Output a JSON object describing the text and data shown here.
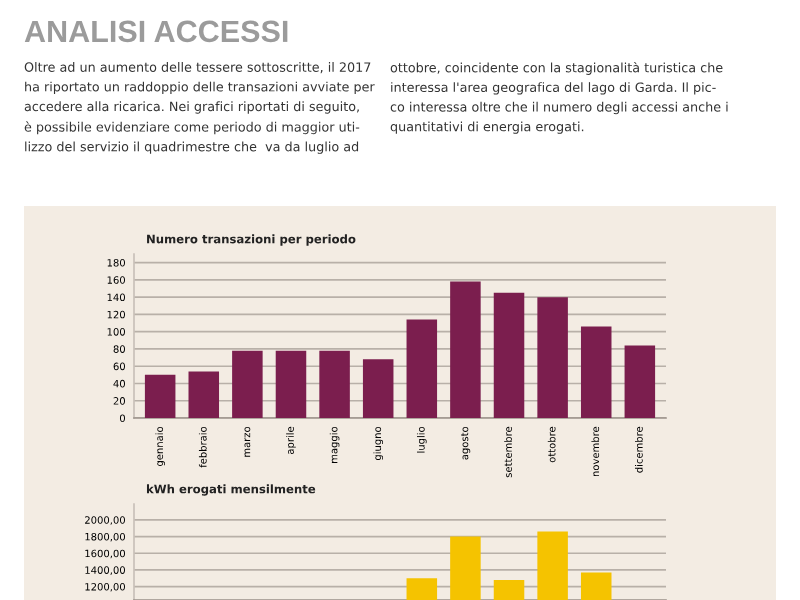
{
  "chart_data": [
    {
      "type": "bar",
      "title": "Numero transazioni per periodo",
      "annotations": [
        "ANALISI ACCESSI",
        "Oltre ad un aumento delle tessere sottoscritte, il 2017\nha riportato un raddoppio delle transazioni avviate per\naccedere alla ricarica. Nei grafici riportati di seguito,\nè possibile evidenziare come periodo di maggior uti-\nlizzo del servizio il quadrimestre che  va da luglio ad",
        "ottobre, coincidente con la stagionalità turistica che\ninteressa l'area geografica del lago di Garda. Il pic-\nco interessa oltre che il numero degli accessi anche i\nquantitativi di energia erogati."
      ],
      "categories": [
        "gennaio",
        "febbraio",
        "marzo",
        "aprile",
        "maggio",
        "giugno",
        "luglio",
        "agosto",
        "settembre",
        "ottobre",
        "novembre",
        "dicembre"
      ],
      "values": [
        50,
        54,
        78,
        78,
        78,
        68,
        114,
        158,
        145,
        140,
        106,
        84
      ],
      "color": "#7b1e4e",
      "ylim": [
        0,
        190
      ],
      "yticks": [
        0,
        20,
        40,
        60,
        80,
        100,
        120,
        140,
        160,
        180
      ],
      "grid": "y"
    },
    {
      "type": "bar",
      "title": "kWh erogati mensilmente",
      "categories": [
        null,
        null,
        null,
        null,
        null,
        null,
        null,
        null,
        null,
        null,
        null,
        null
      ],
      "values": [
        null,
        null,
        null,
        null,
        null,
        null,
        1300,
        1800,
        1280,
        1860,
        1370,
        null
      ],
      "color": "#f5c300",
      "ylim": [
        1040,
        2190
      ],
      "yticks": [
        {
          "value": 1200,
          "label": "1200,00"
        },
        {
          "value": 1400,
          "label": "1400,00"
        },
        {
          "value": 1600,
          "label": "1600,00"
        },
        {
          "value": 1800,
          "label": "1800,00"
        },
        {
          "value": 2000,
          "label": "2000,00"
        }
      ],
      "grid": "y"
    }
  ]
}
